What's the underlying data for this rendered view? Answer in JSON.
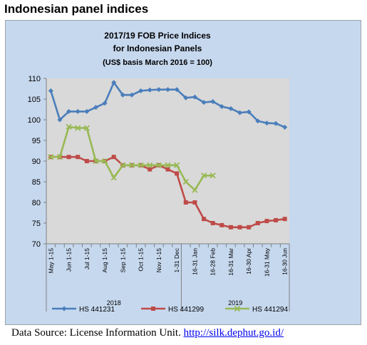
{
  "heading": "Indonesian panel indices",
  "source": {
    "label": "Data Source: License Information Unit.",
    "link": "http://silk.dephut.go.id/"
  },
  "chart_data": {
    "type": "line",
    "title": "2017/19 FOB Price Indices",
    "subtitle": "for Indonesian Panels",
    "subtitle2": "(US$ basis March 2016 = 100)",
    "ylim": [
      70,
      110
    ],
    "yticks": [
      70,
      75,
      80,
      85,
      90,
      95,
      100,
      105,
      110
    ],
    "categories": [
      "May 1-15",
      "",
      "Jun 1-15",
      "",
      "Jul 1-15",
      "",
      "Aug 1-15",
      "",
      "Sep 1-15",
      "",
      "Oct 1-15",
      "",
      "Nov 1-15",
      "",
      "1-31 Dec",
      "",
      "16-31 Jan",
      "",
      "16-28 Feb",
      "",
      "16-31 Mar",
      "",
      "16-30 Apr",
      "",
      "16-31 May",
      "",
      "16-30 Jun"
    ],
    "groups": [
      {
        "label": "2018",
        "start": 0,
        "end": 14
      },
      {
        "label": "2019",
        "start": 15,
        "end": 26
      }
    ],
    "grid": false,
    "legend_position": "bottom",
    "series": [
      {
        "name": "HS 441231",
        "color": "#4a7ebb",
        "values": [
          107,
          100,
          102,
          102,
          102,
          103,
          104,
          109,
          106,
          106,
          107,
          107.2,
          107.3,
          107.3,
          107.3,
          105.3,
          105.5,
          104.2,
          104.4,
          103.2,
          102.7,
          101.7,
          101.9,
          99.7,
          99.2,
          99.1,
          98.2
        ]
      },
      {
        "name": "HS 441299",
        "color": "#be4b48",
        "values": [
          91,
          91,
          91,
          91,
          90,
          90,
          90,
          91,
          89,
          89,
          89,
          88,
          89,
          88,
          87,
          80,
          80,
          76,
          75,
          74.5,
          74,
          74,
          74,
          75,
          75.5,
          75.7,
          76
        ]
      },
      {
        "name": "HS 441294",
        "color": "#98b954",
        "values": [
          91,
          91,
          98.3,
          98,
          98,
          90,
          90,
          86,
          89,
          89,
          89,
          89,
          89,
          89,
          89,
          85,
          83,
          86.5,
          86.5,
          null,
          null,
          null,
          null,
          null,
          null,
          null,
          null
        ]
      }
    ]
  }
}
